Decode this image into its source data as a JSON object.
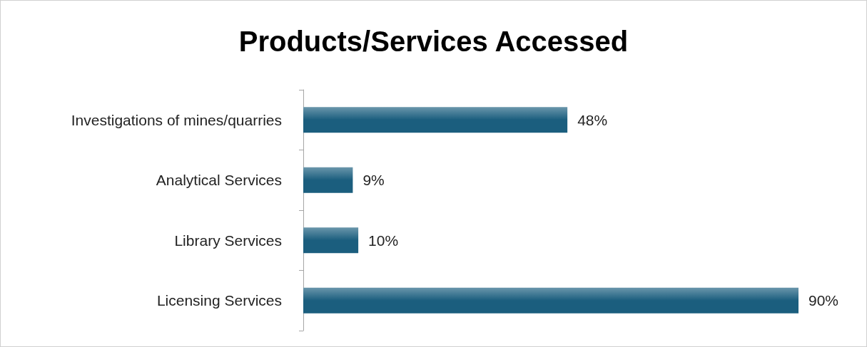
{
  "chart_data": {
    "type": "bar",
    "orientation": "horizontal",
    "title": "Products/Services Accessed",
    "categories": [
      "Investigations of mines/quarries",
      "Analytical Services",
      "Library Services",
      "Licensing Services"
    ],
    "values": [
      48,
      9,
      10,
      90
    ],
    "value_labels": [
      "48%",
      "9%",
      "10%",
      "90%"
    ],
    "color": "#1b5e7e"
  }
}
